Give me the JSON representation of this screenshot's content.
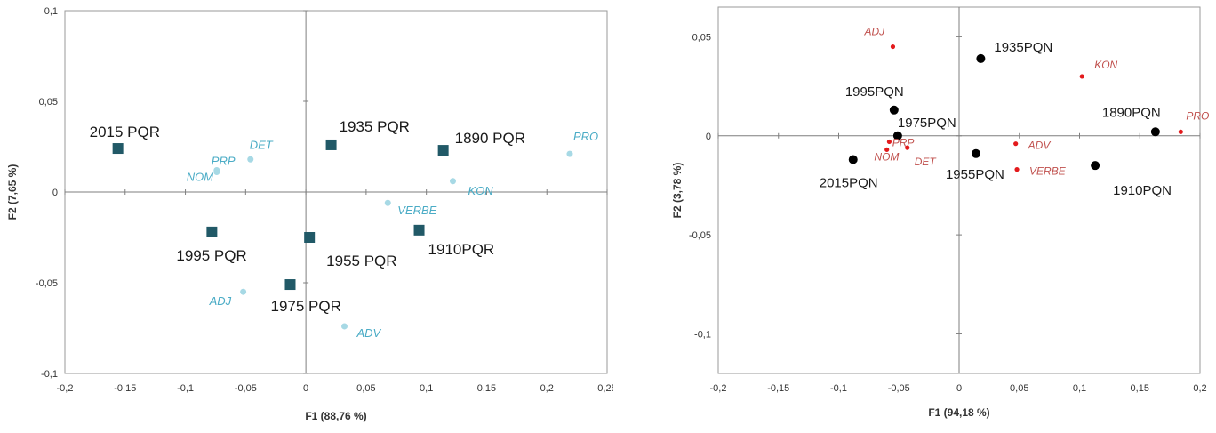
{
  "chart_data": [
    {
      "type": "scatter",
      "xlabel": "F1 (88,76 %)",
      "ylabel": "F2 (7,65 %)",
      "xlim": [
        -0.2,
        0.25
      ],
      "ylim": [
        -0.1,
        0.1
      ],
      "xticks": [
        -0.2,
        -0.15,
        -0.1,
        -0.05,
        0,
        0.05,
        0.1,
        0.15,
        0.2,
        0.25
      ],
      "xtick_labels": [
        "-0,2",
        "-0,15",
        "-0,1",
        "-0,05",
        "0",
        "0,05",
        "0,1",
        "0,15",
        "0,2",
        "0,25"
      ],
      "yticks": [
        -0.1,
        -0.05,
        0,
        0.05,
        0.1
      ],
      "ytick_labels": [
        "-0,1",
        "-0,05",
        "0",
        "0,05",
        "0,1"
      ],
      "grid": false,
      "series": [
        {
          "marker": "square",
          "color": "#215967",
          "label_color": "#1a1a1a",
          "points": [
            {
              "label": "2015 PQR",
              "x": -0.156,
              "y": 0.024
            },
            {
              "label": "1935 PQR",
              "x": 0.021,
              "y": 0.026
            },
            {
              "label": "1890 PQR",
              "x": 0.114,
              "y": 0.023
            },
            {
              "label": "1995 PQR",
              "x": -0.078,
              "y": -0.022
            },
            {
              "label": "1955 PQR",
              "x": 0.003,
              "y": -0.025
            },
            {
              "label": "1910PQR",
              "x": 0.094,
              "y": -0.021
            },
            {
              "label": "1975 PQR",
              "x": -0.013,
              "y": -0.051
            }
          ]
        },
        {
          "marker": "dot",
          "color": "#a7d9e5",
          "label_color": "#4bacc6",
          "italic": true,
          "points": [
            {
              "label": "DET",
              "x": -0.046,
              "y": 0.018
            },
            {
              "label": "PRP",
              "x": -0.074,
              "y": 0.012
            },
            {
              "label": "NOM",
              "x": -0.074,
              "y": 0.011
            },
            {
              "label": "PRO",
              "x": 0.219,
              "y": 0.021
            },
            {
              "label": "KON",
              "x": 0.122,
              "y": 0.006
            },
            {
              "label": "VERBE",
              "x": 0.068,
              "y": -0.006
            },
            {
              "label": "ADJ",
              "x": -0.052,
              "y": -0.055
            },
            {
              "label": "ADV",
              "x": 0.032,
              "y": -0.074
            }
          ]
        }
      ]
    },
    {
      "type": "scatter",
      "xlabel": "F1 (94,18 %)",
      "ylabel": "F2 (3,78 %)",
      "xlim": [
        -0.2,
        0.2
      ],
      "ylim": [
        -0.12,
        0.065
      ],
      "xticks": [
        -0.2,
        -0.15,
        -0.1,
        -0.05,
        0,
        0.05,
        0.1,
        0.15,
        0.2
      ],
      "xtick_labels": [
        "-0,2",
        "-0,15",
        "-0,1",
        "-0,05",
        "0",
        "0,05",
        "0,1",
        "0,15",
        "0,2"
      ],
      "yticks": [
        -0.1,
        -0.05,
        0,
        0.05
      ],
      "ytick_labels": [
        "-0,1",
        "-0,05",
        "0",
        "0,05"
      ],
      "grid": false,
      "series": [
        {
          "marker": "dot",
          "color": "#000000",
          "label_color": "#1a1a1a",
          "points": [
            {
              "label": "1935PQN",
              "x": 0.018,
              "y": 0.039
            },
            {
              "label": "1995PQN",
              "x": -0.054,
              "y": 0.013
            },
            {
              "label": "1975PQN",
              "x": -0.051,
              "y": 0.0
            },
            {
              "label": "1890PQN",
              "x": 0.163,
              "y": 0.002
            },
            {
              "label": "2015PQN",
              "x": -0.088,
              "y": -0.012
            },
            {
              "label": "1955PQN",
              "x": 0.014,
              "y": -0.009
            },
            {
              "label": "1910PQN",
              "x": 0.113,
              "y": -0.015
            }
          ]
        },
        {
          "marker": "small-dot",
          "color": "#e31a1c",
          "label_color": "#c0504d",
          "italic": true,
          "points": [
            {
              "label": "ADJ",
              "x": -0.055,
              "y": 0.045
            },
            {
              "label": "KON",
              "x": 0.102,
              "y": 0.03
            },
            {
              "label": "PRO",
              "x": 0.184,
              "y": 0.002
            },
            {
              "label": "ADV",
              "x": 0.047,
              "y": -0.004
            },
            {
              "label": "VERBE",
              "x": 0.048,
              "y": -0.017
            },
            {
              "label": "PRP",
              "x": -0.06,
              "y": -0.007
            },
            {
              "label": "NOM",
              "x": -0.058,
              "y": -0.003
            },
            {
              "label": "DET",
              "x": -0.043,
              "y": -0.006
            }
          ]
        }
      ]
    }
  ]
}
